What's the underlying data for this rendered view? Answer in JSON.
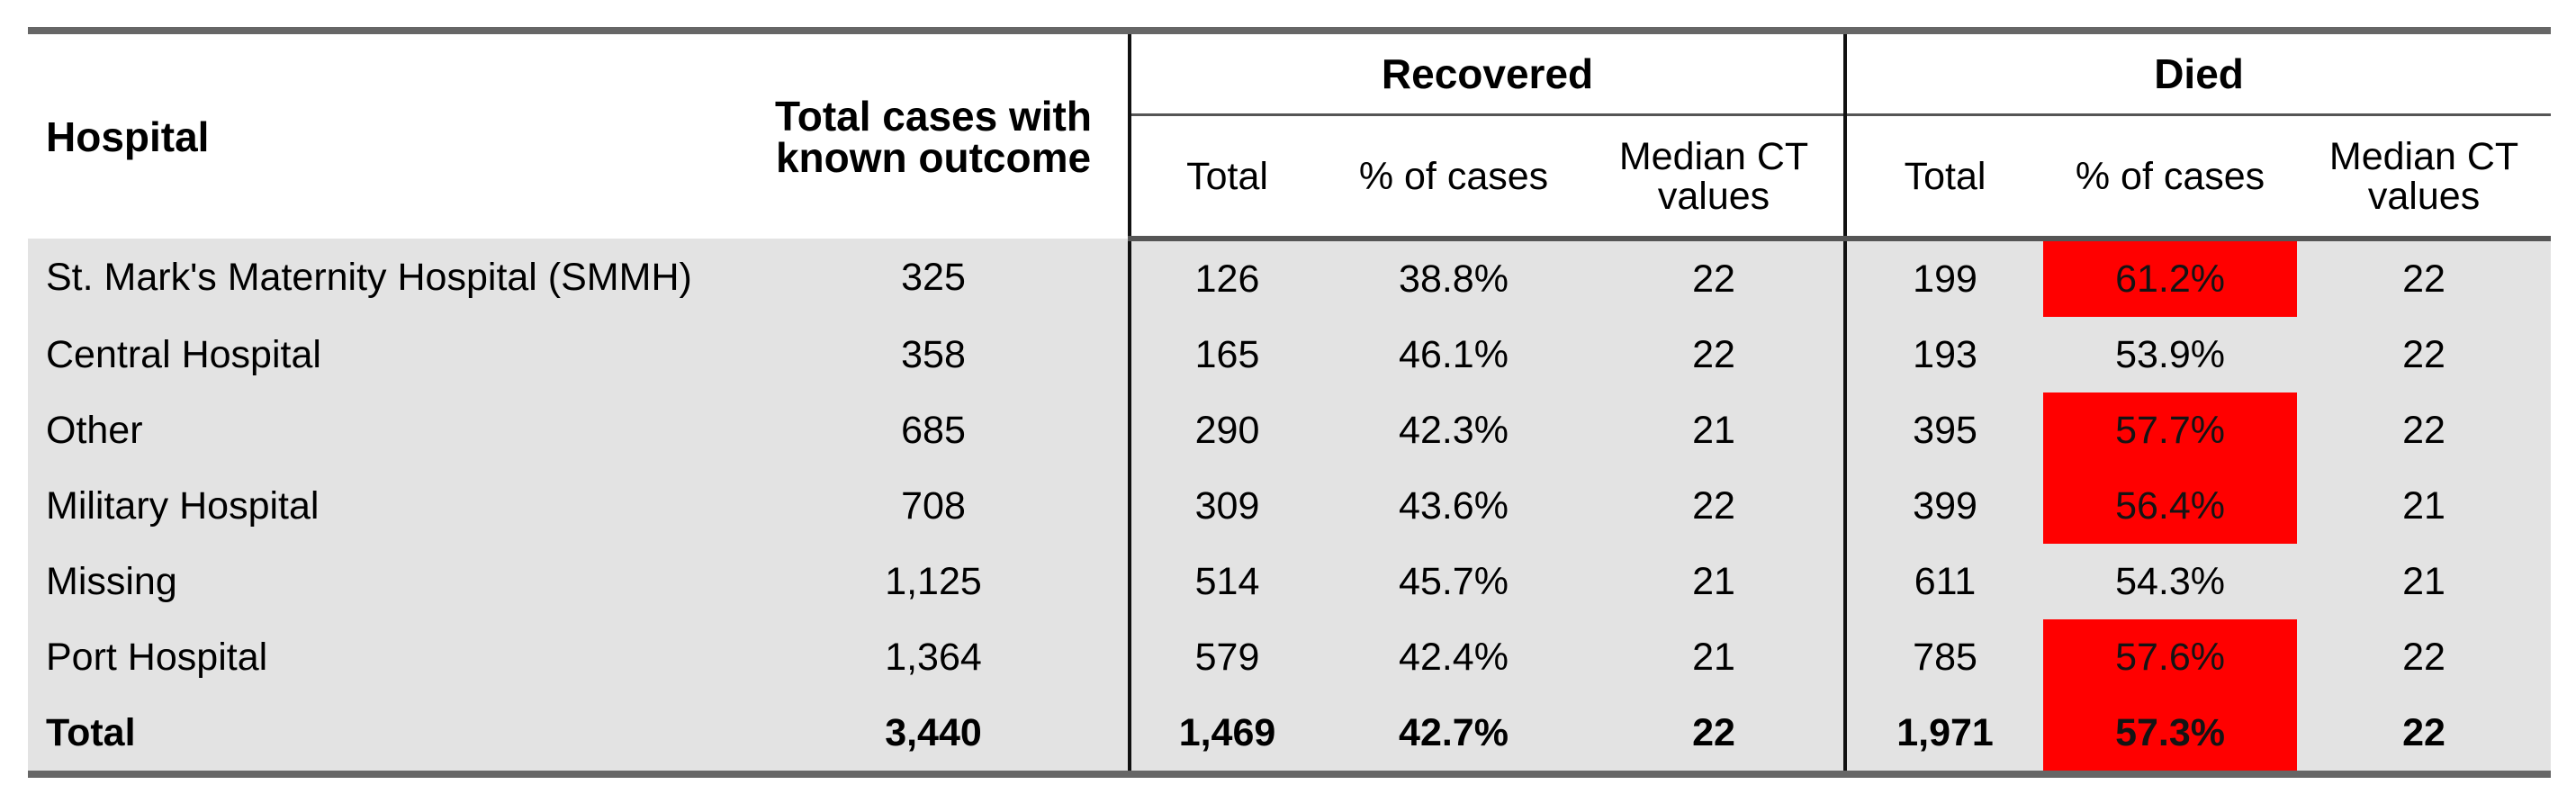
{
  "headers": {
    "hospital": "Hospital",
    "total_cases": [
      "Total cases with",
      "known outcome"
    ],
    "recovered": "Recovered",
    "died": "Died",
    "sub": {
      "total": "Total",
      "pct": "% of cases",
      "median": [
        "Median CT",
        "values"
      ]
    }
  },
  "highlight_color": "#ff0000",
  "rows": [
    {
      "hospital": "St. Mark's Maternity Hospital (SMMH)",
      "total": "325",
      "rec_total": "126",
      "rec_pct": "38.8%",
      "rec_ct": "22",
      "died_total": "199",
      "died_pct": "61.2%",
      "died_ct": "22",
      "highlight": true
    },
    {
      "hospital": "Central Hospital",
      "total": "358",
      "rec_total": "165",
      "rec_pct": "46.1%",
      "rec_ct": "22",
      "died_total": "193",
      "died_pct": "53.9%",
      "died_ct": "22",
      "highlight": false
    },
    {
      "hospital": "Other",
      "total": "685",
      "rec_total": "290",
      "rec_pct": "42.3%",
      "rec_ct": "21",
      "died_total": "395",
      "died_pct": "57.7%",
      "died_ct": "22",
      "highlight": true
    },
    {
      "hospital": "Military Hospital",
      "total": "708",
      "rec_total": "309",
      "rec_pct": "43.6%",
      "rec_ct": "22",
      "died_total": "399",
      "died_pct": "56.4%",
      "died_ct": "21",
      "highlight": true
    },
    {
      "hospital": "Missing",
      "total": "1,125",
      "rec_total": "514",
      "rec_pct": "45.7%",
      "rec_ct": "21",
      "died_total": "611",
      "died_pct": "54.3%",
      "died_ct": "21",
      "highlight": false
    },
    {
      "hospital": "Port Hospital",
      "total": "1,364",
      "rec_total": "579",
      "rec_pct": "42.4%",
      "rec_ct": "21",
      "died_total": "785",
      "died_pct": "57.6%",
      "died_ct": "22",
      "highlight": true
    },
    {
      "hospital": "Total",
      "total": "3,440",
      "rec_total": "1,469",
      "rec_pct": "42.7%",
      "rec_ct": "22",
      "died_total": "1,971",
      "died_pct": "57.3%",
      "died_ct": "22",
      "highlight": true,
      "is_total": true
    }
  ]
}
